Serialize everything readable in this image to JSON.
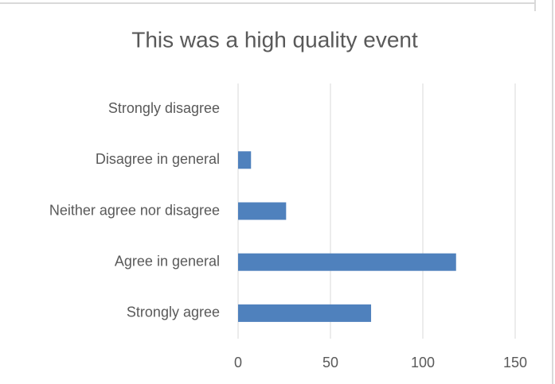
{
  "chart_data": {
    "type": "bar",
    "orientation": "horizontal",
    "title": "This was a high quality event",
    "categories": [
      "Strongly disagree",
      "Disagree in general",
      "Neither agree nor disagree",
      "Agree in general",
      "Strongly agree"
    ],
    "values": [
      0,
      7,
      26,
      118,
      72
    ],
    "color": "#4f81bd",
    "xlim": [
      0,
      150
    ],
    "xticks": [
      0,
      50,
      100,
      150
    ],
    "grid": true
  }
}
